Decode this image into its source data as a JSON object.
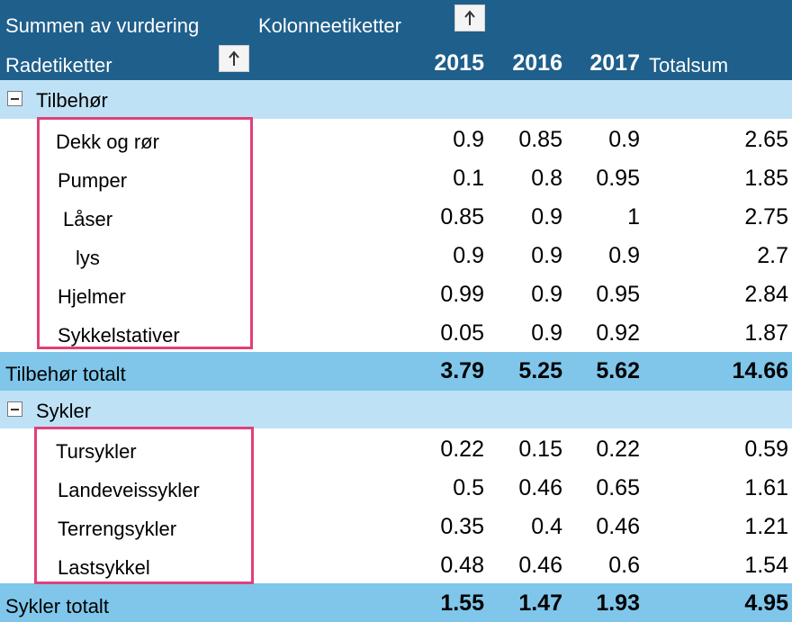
{
  "header": {
    "value_field": "Summen av vurdering",
    "column_labels": "Kolonneetiketter",
    "row_labels": "Radetiketter",
    "years": [
      "2015",
      "2016",
      "2017"
    ],
    "grand_total": "Totalsum"
  },
  "groups": [
    {
      "name": "Tilbehør",
      "items": [
        {
          "label": "Dekk og rør",
          "values": [
            "0.9",
            "0.85",
            "0.9"
          ],
          "total": "2.65"
        },
        {
          "label": "Pumper",
          "values": [
            "0.1",
            "0.8",
            "0.95"
          ],
          "total": "1.85"
        },
        {
          "label": "Låser",
          "values": [
            "0.85",
            "0.9",
            "1"
          ],
          "total": "2.75"
        },
        {
          "label": "lys",
          "values": [
            "0.9",
            "0.9",
            "0.9"
          ],
          "total": "2.7"
        },
        {
          "label": "Hjelmer",
          "values": [
            "0.99",
            "0.9",
            "0.95"
          ],
          "total": "2.84"
        },
        {
          "label": "Sykkelstativer",
          "values": [
            "0.05",
            "0.9",
            "0.92"
          ],
          "total": "1.87"
        }
      ],
      "total_label": "Tilbehør totalt",
      "totals": [
        "3.79",
        "5.25",
        "5.62"
      ],
      "grand": "14.66"
    },
    {
      "name": "Sykler",
      "items": [
        {
          "label": "Tursykler",
          "values": [
            "0.22",
            "0.15",
            "0.22"
          ],
          "total": "0.59"
        },
        {
          "label": "Landeveissykler",
          "values": [
            "0.5",
            "0.46",
            "0.65"
          ],
          "total": "1.61"
        },
        {
          "label": "Terrengsykler",
          "values": [
            "0.35",
            "0.4",
            "0.46"
          ],
          "total": "1.21"
        },
        {
          "label": "Lastsykkel",
          "values": [
            "0.48",
            "0.46",
            "0.6"
          ],
          "total": "1.54"
        }
      ],
      "total_label": "Sykler totalt",
      "totals": [
        "1.55",
        "1.47",
        "1.93"
      ],
      "grand": "4.95"
    }
  ],
  "colors": {
    "header_bg": "#1f5f8b",
    "group_bg": "#bfe1f6",
    "total_bg": "#7fc6ea",
    "highlight": "#e0407a"
  },
  "icons": {
    "sort": "sort-ascending-icon",
    "collapse": "collapse-minus-icon"
  }
}
